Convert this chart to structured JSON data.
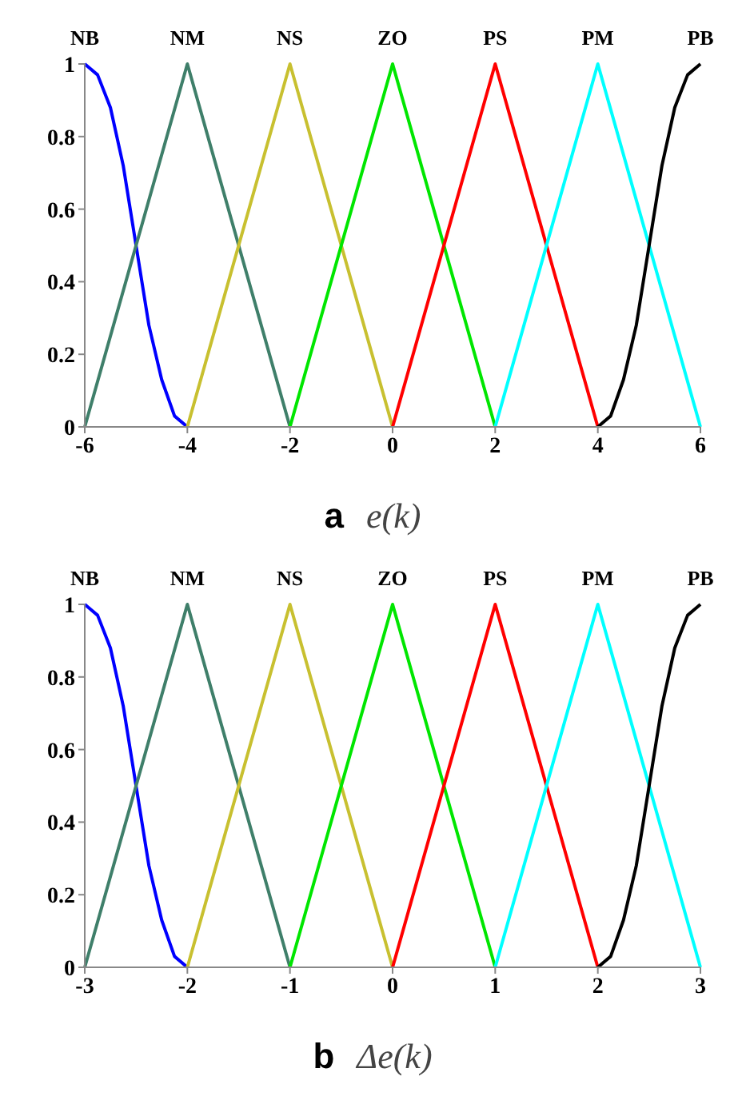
{
  "chart_data": [
    {
      "type": "line",
      "xlabel": "a e(k)",
      "xlim": [
        -6,
        6
      ],
      "xticks": [
        -6,
        -4,
        -2,
        0,
        2,
        4,
        6
      ],
      "ylim": [
        0,
        1
      ],
      "yticks": [
        0,
        0.2,
        0.4,
        0.6,
        0.8,
        1
      ],
      "grid": false,
      "legend": false,
      "marker": "none",
      "line_style": "solid",
      "series": [
        {
          "name": "NB",
          "color": "#0000ff",
          "x": [
            -6,
            -5.75,
            -5.5,
            -5.25,
            -5,
            -4.75,
            -4.5,
            -4.25,
            -4
          ],
          "values": [
            1,
            0.97,
            0.88,
            0.72,
            0.5,
            0.28,
            0.13,
            0.03,
            0
          ]
        },
        {
          "name": "NM",
          "color": "#3f7f6a",
          "x": [
            -6,
            -4,
            -2
          ],
          "values": [
            0,
            1,
            0
          ]
        },
        {
          "name": "NS",
          "color": "#c8c030",
          "x": [
            -4,
            -2,
            0
          ],
          "values": [
            0,
            1,
            0
          ]
        },
        {
          "name": "ZO",
          "color": "#00e600",
          "x": [
            -2,
            0,
            2
          ],
          "values": [
            0,
            1,
            0
          ]
        },
        {
          "name": "PS",
          "color": "#ff0000",
          "x": [
            0,
            2,
            4
          ],
          "values": [
            0,
            1,
            0
          ]
        },
        {
          "name": "PM",
          "color": "#00ffff",
          "x": [
            2,
            4,
            6
          ],
          "values": [
            0,
            1,
            0
          ]
        },
        {
          "name": "PB",
          "color": "#000000",
          "x": [
            4,
            4.25,
            4.5,
            4.75,
            5,
            5.25,
            5.5,
            5.75,
            6
          ],
          "values": [
            0,
            0.03,
            0.13,
            0.28,
            0.5,
            0.72,
            0.88,
            0.97,
            1
          ]
        }
      ]
    },
    {
      "type": "line",
      "xlabel": "b Δe(k)",
      "xlim": [
        -3,
        3
      ],
      "xticks": [
        -3,
        -2,
        -1,
        0,
        1,
        2,
        3
      ],
      "ylim": [
        0,
        1
      ],
      "yticks": [
        0,
        0.2,
        0.4,
        0.6,
        0.8,
        1
      ],
      "grid": false,
      "legend": false,
      "marker": "none",
      "line_style": "solid",
      "series": [
        {
          "name": "NB",
          "color": "#0000ff",
          "x": [
            -3,
            -2.875,
            -2.75,
            -2.625,
            -2.5,
            -2.375,
            -2.25,
            -2.125,
            -2
          ],
          "values": [
            1,
            0.97,
            0.88,
            0.72,
            0.5,
            0.28,
            0.13,
            0.03,
            0
          ]
        },
        {
          "name": "NM",
          "color": "#3f7f6a",
          "x": [
            -3,
            -2,
            -1
          ],
          "values": [
            0,
            1,
            0
          ]
        },
        {
          "name": "NS",
          "color": "#c8c030",
          "x": [
            -2,
            -1,
            0
          ],
          "values": [
            0,
            1,
            0
          ]
        },
        {
          "name": "ZO",
          "color": "#00e600",
          "x": [
            -1,
            0,
            1
          ],
          "values": [
            0,
            1,
            0
          ]
        },
        {
          "name": "PS",
          "color": "#ff0000",
          "x": [
            0,
            1,
            2
          ],
          "values": [
            0,
            1,
            0
          ]
        },
        {
          "name": "PM",
          "color": "#00ffff",
          "x": [
            1,
            2,
            3
          ],
          "values": [
            0,
            1,
            0
          ]
        },
        {
          "name": "PB",
          "color": "#000000",
          "x": [
            2,
            2.125,
            2.25,
            2.375,
            2.5,
            2.625,
            2.75,
            2.875,
            3
          ],
          "values": [
            0,
            0.03,
            0.13,
            0.28,
            0.5,
            0.72,
            0.88,
            0.97,
            1
          ]
        }
      ]
    }
  ]
}
